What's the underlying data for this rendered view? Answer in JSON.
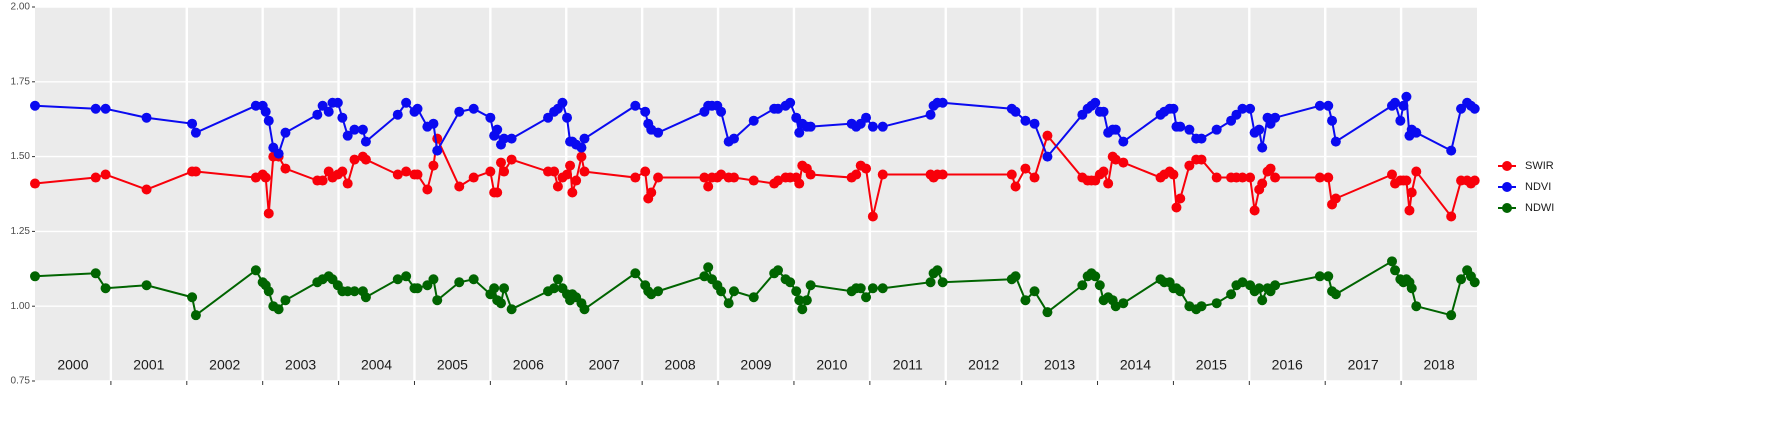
{
  "chart_data": {
    "type": "line",
    "x": [
      2000,
      2000.8,
      2000.93,
      2001.47,
      2002.07,
      2002.12,
      2002.91,
      2003,
      2003.04,
      2003.08,
      2003.14,
      2003.21,
      2003.3,
      2003.72,
      2003.79,
      2003.87,
      2003.92,
      2003.99,
      2004.05,
      2004.12,
      2004.21,
      2004.32,
      2004.36,
      2004.78,
      2004.89,
      2005,
      2005.04,
      2005.17,
      2005.25,
      2005.3,
      2005.59,
      2005.78,
      2006,
      2006.05,
      2006.09,
      2006.14,
      2006.18,
      2006.28,
      2006.76,
      2006.84,
      2006.89,
      2006.95,
      2007.01,
      2007.05,
      2007.08,
      2007.13,
      2007.2,
      2007.24,
      2007.91,
      2008.04,
      2008.08,
      2008.12,
      2008.21,
      2008.82,
      2008.87,
      2008.92,
      2008.99,
      2009.04,
      2009.14,
      2009.21,
      2009.47,
      2009.74,
      2009.79,
      2009.89,
      2009.95,
      2010.03,
      2010.07,
      2010.11,
      2010.17,
      2010.22,
      2010.76,
      2010.82,
      2010.88,
      2010.95,
      2011.04,
      2011.17,
      2011.8,
      2011.84,
      2011.89,
      2011.96,
      2012.87,
      2012.92,
      2013.05,
      2013.17,
      2013.34,
      2013.8,
      2013.87,
      2013.92,
      2013.97,
      2014.03,
      2014.08,
      2014.14,
      2014.2,
      2014.24,
      2014.34,
      2014.83,
      2014.88,
      2014.95,
      2015,
      2015.04,
      2015.09,
      2015.21,
      2015.3,
      2015.37,
      2015.57,
      2015.76,
      2015.83,
      2015.91,
      2016.01,
      2016.07,
      2016.13,
      2016.17,
      2016.24,
      2016.28,
      2016.34,
      2016.93,
      2017.04,
      2017.09,
      2017.14,
      2017.88,
      2017.92,
      2017.99,
      2018.03,
      2018.07,
      2018.11,
      2018.14,
      2018.2,
      2018.66,
      2018.79,
      2018.87,
      2018.92,
      2018.97
    ],
    "series": [
      {
        "name": "SWIR",
        "color": "#f8000a",
        "values": [
          1.41,
          1.43,
          1.44,
          1.39,
          1.45,
          1.45,
          1.43,
          1.44,
          1.43,
          1.31,
          1.5,
          1.5,
          1.46,
          1.42,
          1.42,
          1.45,
          1.43,
          1.44,
          1.45,
          1.41,
          1.49,
          1.5,
          1.49,
          1.44,
          1.45,
          1.44,
          1.44,
          1.39,
          1.47,
          1.56,
          1.4,
          1.43,
          1.45,
          1.38,
          1.38,
          1.48,
          1.45,
          1.49,
          1.45,
          1.45,
          1.4,
          1.43,
          1.44,
          1.47,
          1.38,
          1.42,
          1.5,
          1.45,
          1.43,
          1.45,
          1.36,
          1.38,
          1.43,
          1.43,
          1.4,
          1.43,
          1.43,
          1.44,
          1.43,
          1.43,
          1.42,
          1.41,
          1.42,
          1.43,
          1.43,
          1.43,
          1.41,
          1.47,
          1.46,
          1.44,
          1.43,
          1.44,
          1.47,
          1.46,
          1.3,
          1.44,
          1.44,
          1.43,
          1.44,
          1.44,
          1.44,
          1.4,
          1.46,
          1.43,
          1.57,
          1.43,
          1.42,
          1.42,
          1.42,
          1.44,
          1.45,
          1.41,
          1.5,
          1.49,
          1.48,
          1.43,
          1.44,
          1.45,
          1.44,
          1.33,
          1.36,
          1.47,
          1.49,
          1.49,
          1.43,
          1.43,
          1.43,
          1.43,
          1.43,
          1.32,
          1.39,
          1.41,
          1.45,
          1.46,
          1.43,
          1.43,
          1.43,
          1.34,
          1.36,
          1.44,
          1.41,
          1.42,
          1.42,
          1.42,
          1.32,
          1.38,
          1.45,
          1.3,
          1.42,
          1.42,
          1.41,
          1.42
        ]
      },
      {
        "name": "NDVI",
        "color": "#0a0af0",
        "values": [
          1.67,
          1.66,
          1.66,
          1.63,
          1.61,
          1.58,
          1.67,
          1.67,
          1.65,
          1.62,
          1.53,
          1.51,
          1.58,
          1.64,
          1.67,
          1.65,
          1.68,
          1.68,
          1.63,
          1.57,
          1.59,
          1.59,
          1.55,
          1.64,
          1.68,
          1.65,
          1.66,
          1.6,
          1.61,
          1.52,
          1.65,
          1.66,
          1.63,
          1.57,
          1.59,
          1.54,
          1.56,
          1.56,
          1.63,
          1.65,
          1.66,
          1.68,
          1.63,
          1.55,
          1.55,
          1.54,
          1.53,
          1.56,
          1.67,
          1.65,
          1.61,
          1.59,
          1.58,
          1.65,
          1.67,
          1.67,
          1.67,
          1.65,
          1.55,
          1.56,
          1.62,
          1.66,
          1.66,
          1.67,
          1.68,
          1.63,
          1.58,
          1.61,
          1.6,
          1.6,
          1.61,
          1.6,
          1.61,
          1.63,
          1.6,
          1.6,
          1.64,
          1.67,
          1.68,
          1.68,
          1.66,
          1.65,
          1.62,
          1.61,
          1.5,
          1.64,
          1.66,
          1.67,
          1.68,
          1.65,
          1.65,
          1.58,
          1.59,
          1.59,
          1.55,
          1.64,
          1.65,
          1.66,
          1.66,
          1.6,
          1.6,
          1.59,
          1.56,
          1.56,
          1.59,
          1.62,
          1.64,
          1.66,
          1.66,
          1.58,
          1.59,
          1.53,
          1.63,
          1.61,
          1.63,
          1.67,
          1.67,
          1.62,
          1.55,
          1.67,
          1.68,
          1.62,
          1.67,
          1.7,
          1.57,
          1.59,
          1.58,
          1.52,
          1.66,
          1.68,
          1.67,
          1.66
        ]
      },
      {
        "name": "NDWI",
        "color": "#006400",
        "values": [
          1.1,
          1.11,
          1.06,
          1.07,
          1.03,
          0.97,
          1.12,
          1.08,
          1.07,
          1.05,
          1.0,
          0.99,
          1.02,
          1.08,
          1.09,
          1.1,
          1.09,
          1.07,
          1.05,
          1.05,
          1.05,
          1.05,
          1.03,
          1.09,
          1.1,
          1.06,
          1.06,
          1.07,
          1.09,
          1.02,
          1.08,
          1.09,
          1.04,
          1.06,
          1.02,
          1.01,
          1.06,
          0.99,
          1.05,
          1.06,
          1.09,
          1.06,
          1.04,
          1.02,
          1.04,
          1.03,
          1.01,
          0.99,
          1.11,
          1.07,
          1.05,
          1.04,
          1.05,
          1.1,
          1.13,
          1.09,
          1.07,
          1.05,
          1.01,
          1.05,
          1.03,
          1.11,
          1.12,
          1.09,
          1.08,
          1.05,
          1.02,
          0.99,
          1.02,
          1.07,
          1.05,
          1.06,
          1.06,
          1.03,
          1.06,
          1.06,
          1.08,
          1.11,
          1.12,
          1.08,
          1.09,
          1.1,
          1.02,
          1.05,
          0.98,
          1.07,
          1.1,
          1.11,
          1.1,
          1.07,
          1.02,
          1.03,
          1.02,
          1.0,
          1.01,
          1.09,
          1.08,
          1.08,
          1.06,
          1.06,
          1.05,
          1.0,
          0.99,
          1.0,
          1.01,
          1.04,
          1.07,
          1.08,
          1.07,
          1.05,
          1.06,
          1.02,
          1.06,
          1.05,
          1.07,
          1.1,
          1.1,
          1.05,
          1.04,
          1.15,
          1.12,
          1.09,
          1.08,
          1.09,
          1.08,
          1.06,
          1.0,
          0.97,
          1.09,
          1.12,
          1.1,
          1.08
        ]
      }
    ],
    "xlim": [
      2000,
      2019
    ],
    "xticks": [
      2001,
      2002,
      2003,
      2004,
      2005,
      2006,
      2007,
      2008,
      2009,
      2010,
      2011,
      2012,
      2013,
      2014,
      2015,
      2016,
      2017,
      2018
    ],
    "ylim": [
      0.75,
      2.0
    ],
    "yticks": [
      0.75,
      {
        "value": 1.0,
        "label": "1.00"
      },
      {
        "value": 1.25,
        "label": "1.25"
      },
      {
        "value": 1.5,
        "label": "1.50"
      },
      {
        "value": 1.75,
        "label": "1.75"
      },
      {
        "value": 2.0,
        "label": "2.00"
      }
    ],
    "annotations": [
      {
        "x": 2000.5,
        "text": "2000"
      },
      {
        "x": 2001.5,
        "text": "2001"
      },
      {
        "x": 2002.5,
        "text": "2002"
      },
      {
        "x": 2003.5,
        "text": "2003"
      },
      {
        "x": 2004.5,
        "text": "2004"
      },
      {
        "x": 2005.5,
        "text": "2005"
      },
      {
        "x": 2006.5,
        "text": "2006"
      },
      {
        "x": 2007.5,
        "text": "2007"
      },
      {
        "x": 2008.5,
        "text": "2008"
      },
      {
        "x": 2009.5,
        "text": "2009"
      },
      {
        "x": 2010.5,
        "text": "2010"
      },
      {
        "x": 2011.5,
        "text": "2011"
      },
      {
        "x": 2012.5,
        "text": "2012"
      },
      {
        "x": 2013.5,
        "text": "2013"
      },
      {
        "x": 2014.5,
        "text": "2014"
      },
      {
        "x": 2015.5,
        "text": "2015"
      },
      {
        "x": 2016.5,
        "text": "2016"
      },
      {
        "x": 2017.5,
        "text": "2017"
      },
      {
        "x": 2018.5,
        "text": "2018"
      }
    ],
    "grid": true,
    "legend": "right"
  }
}
